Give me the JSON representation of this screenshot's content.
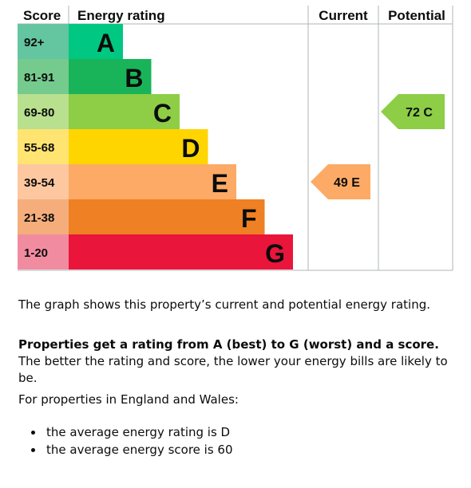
{
  "chart_data": {
    "type": "bar",
    "headers": {
      "score": "Score",
      "rating": "Energy rating",
      "current": "Current",
      "potential": "Potential"
    },
    "bands": [
      {
        "letter": "A",
        "range": "92+",
        "bar_color": "#00c781",
        "score_color": "#64c5a1"
      },
      {
        "letter": "B",
        "range": "81-91",
        "bar_color": "#19b459",
        "score_color": "#75cb8e"
      },
      {
        "letter": "C",
        "range": "69-80",
        "bar_color": "#8dce46",
        "score_color": "#b8e08e"
      },
      {
        "letter": "D",
        "range": "55-68",
        "bar_color": "#ffd500",
        "score_color": "#ffe471"
      },
      {
        "letter": "E",
        "range": "39-54",
        "bar_color": "#fcaa65",
        "score_color": "#fdc8a0"
      },
      {
        "letter": "F",
        "range": "21-38",
        "bar_color": "#ef8023",
        "score_color": "#f5ae7b"
      },
      {
        "letter": "G",
        "range": "1-20",
        "bar_color": "#e9153b",
        "score_color": "#f18ca0"
      }
    ],
    "current": {
      "score": 49,
      "band": "E",
      "label": "49 E",
      "color": "#fcaa65"
    },
    "potential": {
      "score": 72,
      "band": "C",
      "label": "72 C",
      "color": "#8dce46"
    }
  },
  "text": {
    "p1": "The graph shows this property’s current and potential energy rating.",
    "p2_bold": "Properties get a rating from A (best) to G (worst) and a score.",
    "p2_rest": " The better the rating and score, the lower your energy bills are likely to be.",
    "p3": "For properties in England and Wales:",
    "bullets": [
      "the average energy rating is D",
      "the average energy score is 60"
    ]
  }
}
